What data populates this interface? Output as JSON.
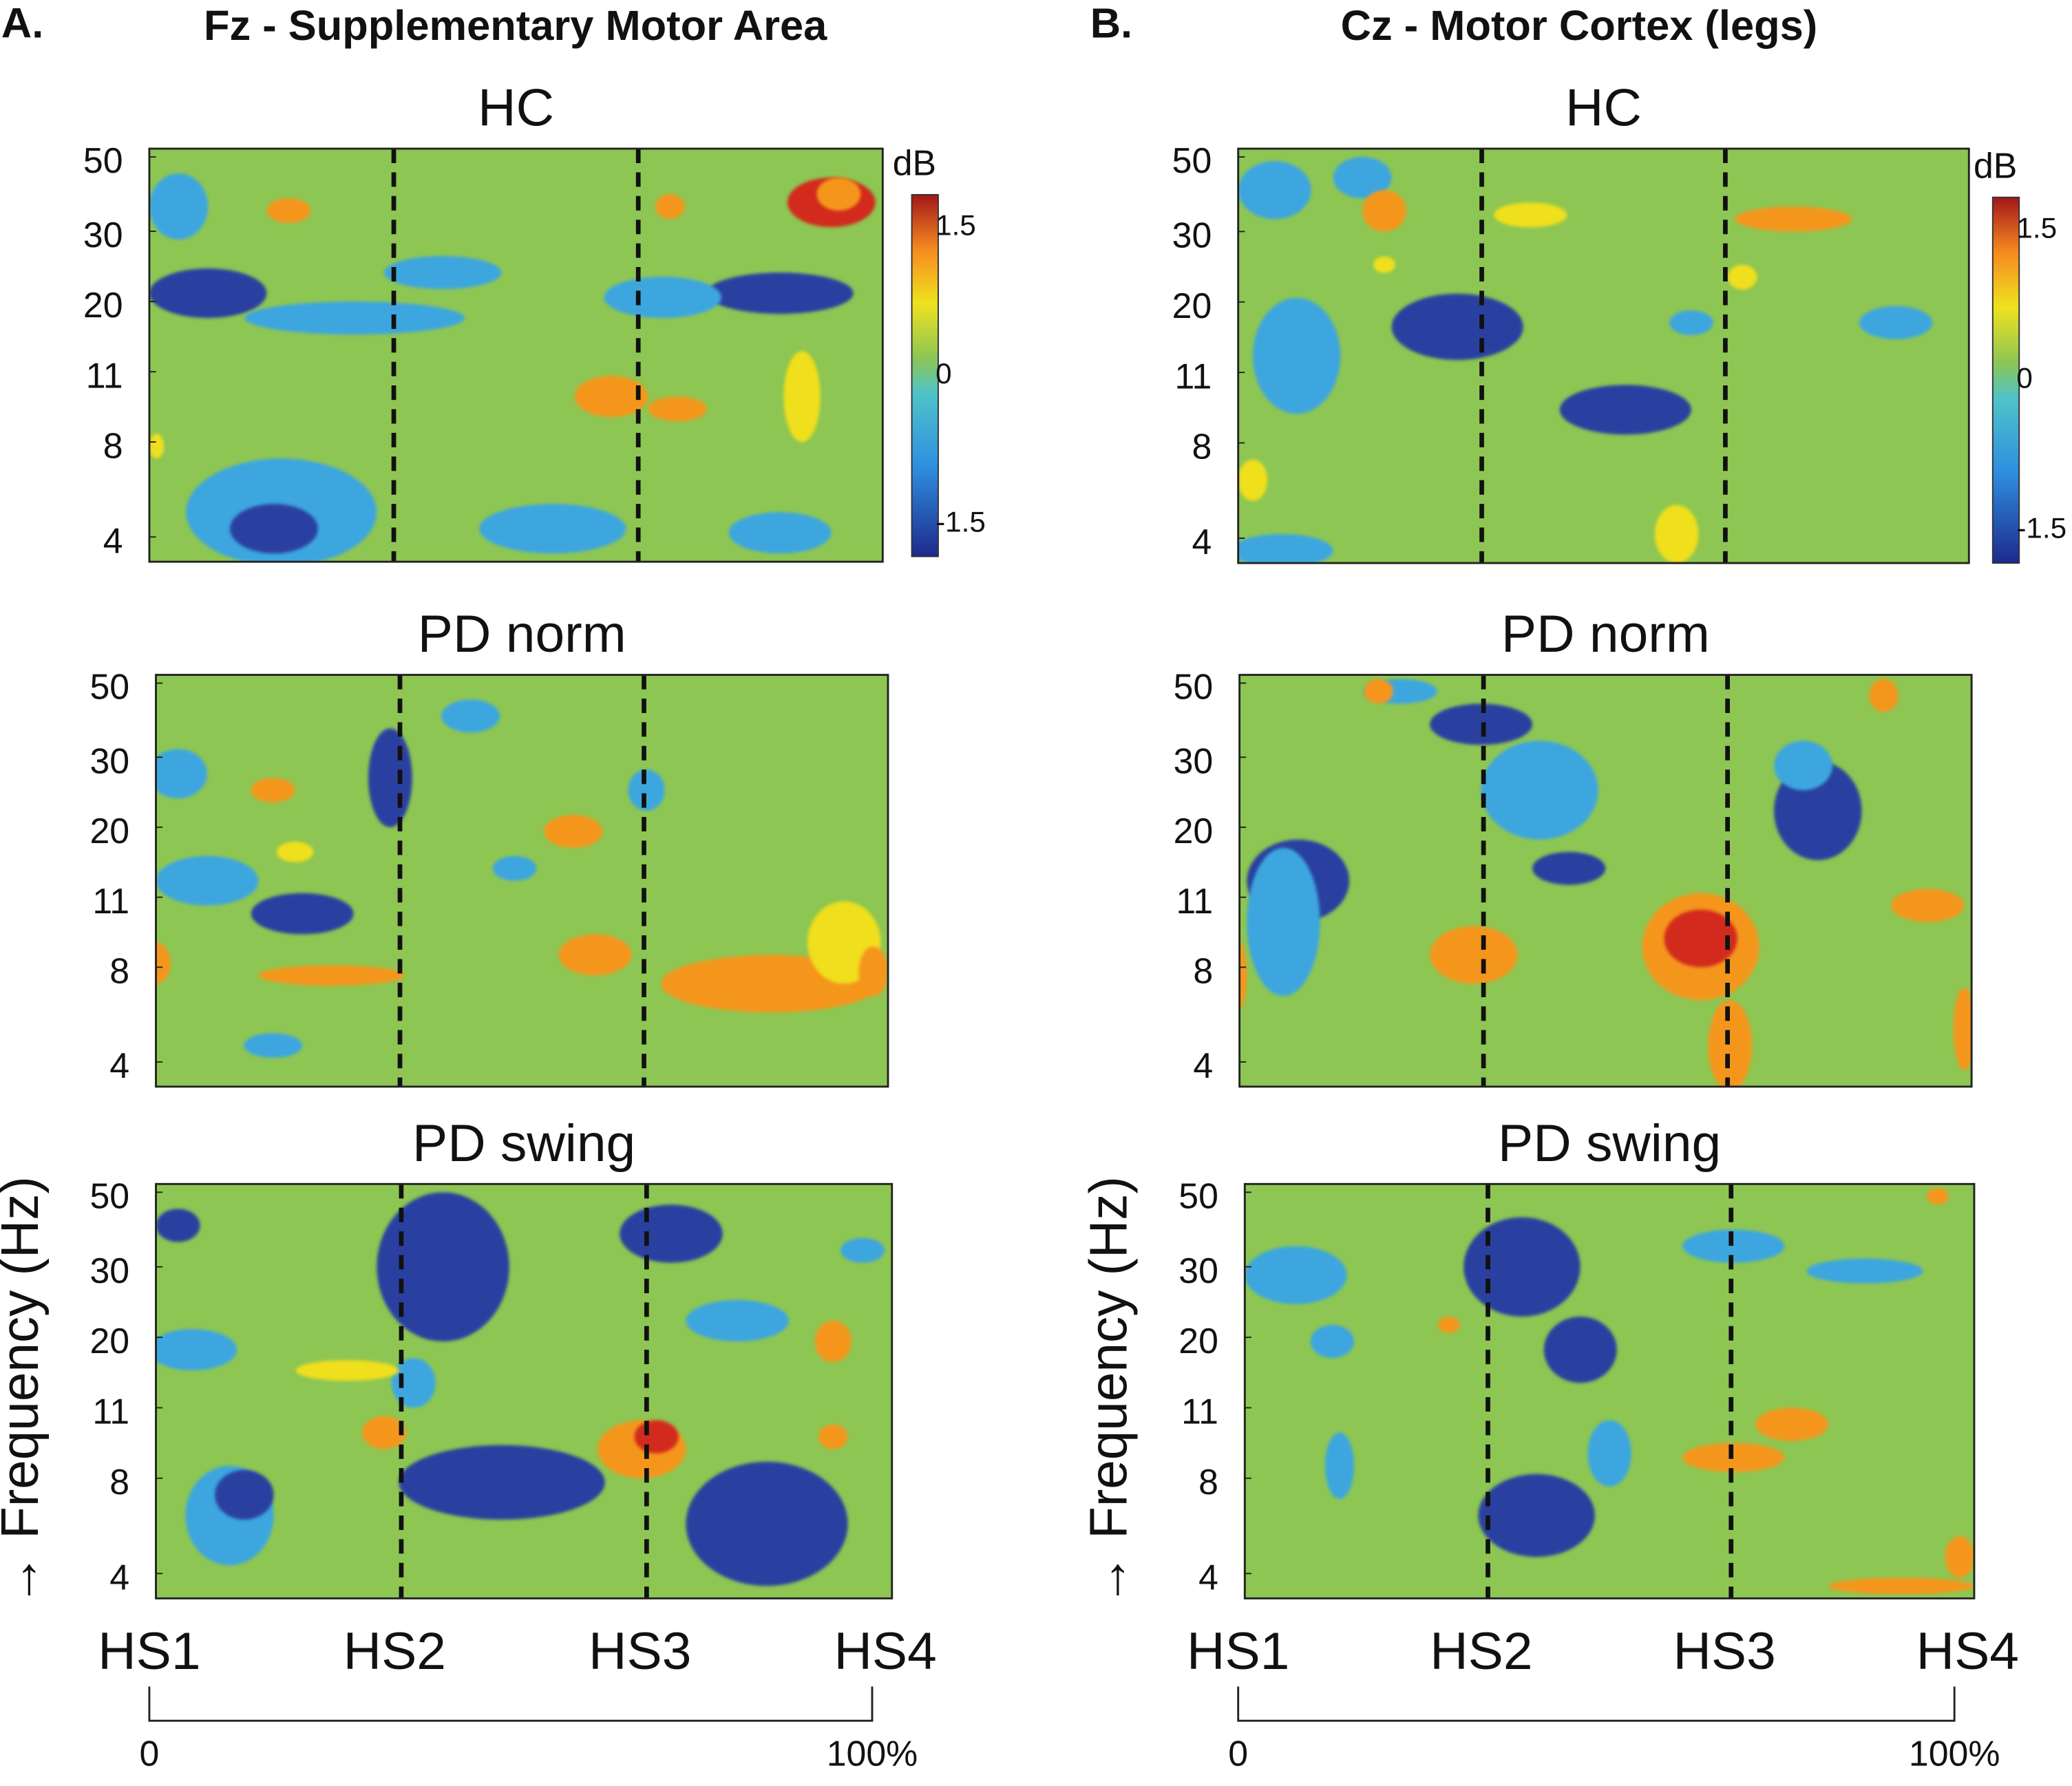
{
  "panels": [
    {
      "letter": "A.",
      "title": "Fz - Supplementary Motor Area",
      "plots": [
        {
          "title": "HC"
        },
        {
          "title": "PD norm"
        },
        {
          "title": "PD swing"
        }
      ]
    },
    {
      "letter": "B.",
      "title": "Cz - Motor Cortex (legs)",
      "plots": [
        {
          "title": "HC"
        },
        {
          "title": "PD norm"
        },
        {
          "title": "PD swing"
        }
      ]
    }
  ],
  "frequency_ticks": [
    "50",
    "30",
    "20",
    "11",
    "8",
    "4"
  ],
  "y_label": "→ Frequency (Hz)",
  "events": [
    "HS1",
    "HS2",
    "HS3",
    "HS4"
  ],
  "gait_cycle": [
    "0",
    "100%"
  ],
  "colorbar": {
    "unit": "dB",
    "ticks": [
      "1.5",
      "0",
      "-1.5"
    ]
  }
}
